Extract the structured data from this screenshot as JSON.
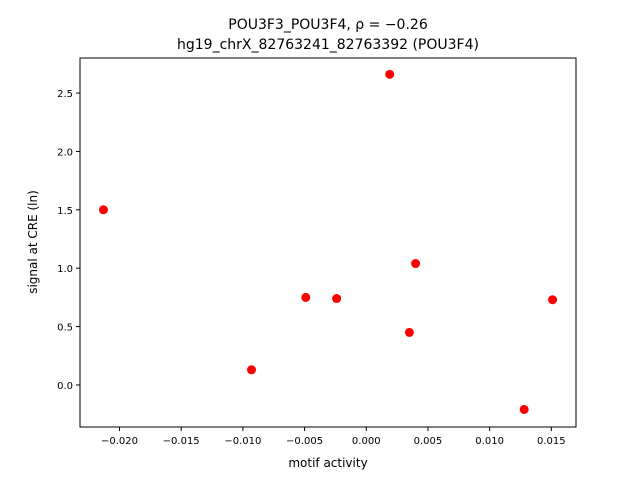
{
  "chart_data": {
    "type": "scatter",
    "title_line1": "POU3F3_POU3F4, ρ = −0.26",
    "title_line2": "hg19_chrX_82763241_82763392 (POU3F4)",
    "xlabel": "motif activity",
    "ylabel": "signal at CRE (ln)",
    "xlim": [
      -0.0232,
      0.017
    ],
    "ylim": [
      -0.36,
      2.8
    ],
    "xticks": [
      -0.02,
      -0.015,
      -0.01,
      -0.005,
      0.0,
      0.005,
      0.01,
      0.015
    ],
    "xtick_labels": [
      "−0.020",
      "−0.015",
      "−0.010",
      "−0.005",
      "0.000",
      "0.005",
      "0.010",
      "0.015"
    ],
    "yticks": [
      0.0,
      0.5,
      1.0,
      1.5,
      2.0,
      2.5
    ],
    "ytick_labels": [
      "0.0",
      "0.5",
      "1.0",
      "1.5",
      "2.0",
      "2.5"
    ],
    "grid": false,
    "marker_color": "#ff0000",
    "points": [
      {
        "x": -0.0213,
        "y": 1.5
      },
      {
        "x": -0.0093,
        "y": 0.13
      },
      {
        "x": -0.0049,
        "y": 0.75
      },
      {
        "x": -0.0024,
        "y": 0.74
      },
      {
        "x": 0.0019,
        "y": 2.66
      },
      {
        "x": 0.0035,
        "y": 0.45
      },
      {
        "x": 0.004,
        "y": 1.04
      },
      {
        "x": 0.0128,
        "y": -0.21
      },
      {
        "x": 0.0151,
        "y": 0.73
      }
    ]
  }
}
